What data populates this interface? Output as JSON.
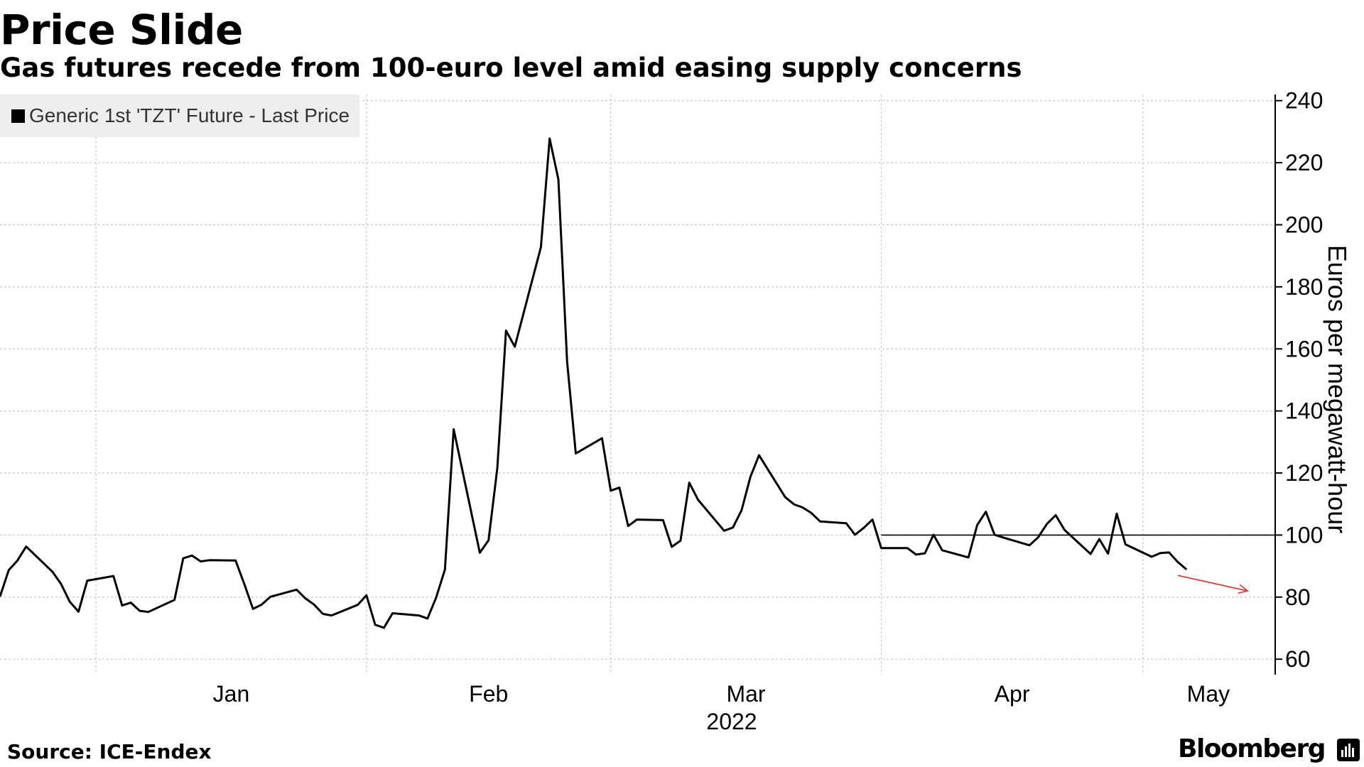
{
  "title": "Price Slide",
  "subtitle": "Gas futures recede from 100-euro level amid easing supply concerns",
  "source": "Source: ICE-Endex",
  "brand": "Bloomberg",
  "chart_data": {
    "type": "line",
    "title": "Price Slide",
    "subtitle": "Gas futures recede from 100-euro level amid easing supply concerns",
    "ylabel": "Euros per megawatt-hour",
    "xlabel": "2022",
    "y_axis_side": "right",
    "ylim": [
      55,
      242
    ],
    "yticks": [
      60,
      80,
      100,
      120,
      140,
      160,
      180,
      200,
      220,
      240
    ],
    "xlim": [
      "2021-12-21",
      "2022-05-16"
    ],
    "x_month_labels": [
      {
        "label": "Jan",
        "date": "2022-01-01"
      },
      {
        "label": "Feb",
        "date": "2022-02-01"
      },
      {
        "label": "Mar",
        "date": "2022-03-01"
      },
      {
        "label": "Apr",
        "date": "2022-04-01"
      },
      {
        "label": "May",
        "date": "2022-05-01"
      }
    ],
    "x_gridline_dates": [
      "2022-01-01",
      "2022-02-01",
      "2022-03-01",
      "2022-04-01",
      "2022-05-01"
    ],
    "year_label": "2022",
    "grid": true,
    "legend_position": "top-left",
    "reference_line": {
      "value": 100,
      "from_date": "2022-04-01"
    },
    "annotation_arrow": {
      "color": "#e8302c",
      "direction": "down-right",
      "from": {
        "date": "2022-05-05",
        "value": 87
      },
      "to": {
        "date": "2022-05-13",
        "value": 82
      }
    },
    "series": [
      {
        "name": "Generic 1st 'TZT' Future - Last Price",
        "color": "#000000",
        "points": [
          [
            "2021-12-21",
            80.2
          ],
          [
            "2021-12-22",
            88.7
          ],
          [
            "2021-12-23",
            91.8
          ],
          [
            "2021-12-24",
            96.3
          ],
          [
            "2021-12-27",
            88.2
          ],
          [
            "2021-12-28",
            84.2
          ],
          [
            "2021-12-29",
            78.5
          ],
          [
            "2021-12-30",
            75.3
          ],
          [
            "2021-12-31",
            85.3
          ],
          [
            "2022-01-03",
            86.8
          ],
          [
            "2022-01-04",
            77.3
          ],
          [
            "2022-01-05",
            78.2
          ],
          [
            "2022-01-06",
            75.6
          ],
          [
            "2022-01-07",
            75.2
          ],
          [
            "2022-01-10",
            79.1
          ],
          [
            "2022-01-11",
            92.5
          ],
          [
            "2022-01-12",
            93.4
          ],
          [
            "2022-01-13",
            91.5
          ],
          [
            "2022-01-14",
            91.9
          ],
          [
            "2022-01-17",
            91.8
          ],
          [
            "2022-01-18",
            84.2
          ],
          [
            "2022-01-19",
            76.2
          ],
          [
            "2022-01-20",
            77.6
          ],
          [
            "2022-01-21",
            80.1
          ],
          [
            "2022-01-24",
            82.4
          ],
          [
            "2022-01-25",
            79.6
          ],
          [
            "2022-01-26",
            77.6
          ],
          [
            "2022-01-27",
            74.6
          ],
          [
            "2022-01-28",
            74.1
          ],
          [
            "2022-01-31",
            77.5
          ],
          [
            "2022-02-01",
            80.6
          ],
          [
            "2022-02-02",
            71.1
          ],
          [
            "2022-02-03",
            70.1
          ],
          [
            "2022-02-04",
            74.8
          ],
          [
            "2022-02-07",
            74.1
          ],
          [
            "2022-02-08",
            73.1
          ],
          [
            "2022-02-09",
            79.9
          ],
          [
            "2022-02-10",
            88.9
          ],
          [
            "2022-02-11",
            134.1
          ],
          [
            "2022-02-14",
            94.3
          ],
          [
            "2022-02-15",
            98.3
          ],
          [
            "2022-02-16",
            121.5
          ],
          [
            "2022-02-17",
            165.9
          ],
          [
            "2022-02-18",
            160.7
          ],
          [
            "2022-02-21",
            192.8
          ],
          [
            "2022-02-22",
            227.8
          ],
          [
            "2022-02-23",
            214.6
          ],
          [
            "2022-02-24",
            155.8
          ],
          [
            "2022-02-25",
            126.3
          ],
          [
            "2022-02-28",
            131.2
          ],
          [
            "2022-03-01",
            114.3
          ],
          [
            "2022-03-02",
            115.3
          ],
          [
            "2022-03-03",
            102.9
          ],
          [
            "2022-03-04",
            105.0
          ],
          [
            "2022-03-07",
            104.8
          ],
          [
            "2022-03-08",
            96.2
          ],
          [
            "2022-03-09",
            98.2
          ],
          [
            "2022-03-10",
            116.9
          ],
          [
            "2022-03-11",
            111.4
          ],
          [
            "2022-03-14",
            101.4
          ],
          [
            "2022-03-15",
            102.4
          ],
          [
            "2022-03-16",
            108.0
          ],
          [
            "2022-03-17",
            118.7
          ],
          [
            "2022-03-18",
            125.7
          ],
          [
            "2022-03-21",
            112.2
          ],
          [
            "2022-03-22",
            109.9
          ],
          [
            "2022-03-23",
            108.9
          ],
          [
            "2022-03-24",
            107.1
          ],
          [
            "2022-03-25",
            104.4
          ],
          [
            "2022-03-28",
            103.8
          ],
          [
            "2022-03-29",
            100.1
          ],
          [
            "2022-03-30",
            102.3
          ],
          [
            "2022-03-31",
            105.0
          ],
          [
            "2022-04-01",
            95.8
          ],
          [
            "2022-04-04",
            95.8
          ],
          [
            "2022-04-05",
            93.7
          ],
          [
            "2022-04-06",
            94.1
          ],
          [
            "2022-04-07",
            100.1
          ],
          [
            "2022-04-08",
            95.1
          ],
          [
            "2022-04-11",
            92.8
          ],
          [
            "2022-04-12",
            103.2
          ],
          [
            "2022-04-13",
            107.5
          ],
          [
            "2022-04-14",
            100.1
          ],
          [
            "2022-04-15",
            99.2
          ],
          [
            "2022-04-18",
            96.7
          ],
          [
            "2022-04-19",
            99.3
          ],
          [
            "2022-04-20",
            103.6
          ],
          [
            "2022-04-21",
            106.4
          ],
          [
            "2022-04-22",
            101.7
          ],
          [
            "2022-04-25",
            93.9
          ],
          [
            "2022-04-26",
            98.7
          ],
          [
            "2022-04-27",
            94.0
          ],
          [
            "2022-04-28",
            106.9
          ],
          [
            "2022-04-29",
            97.0
          ],
          [
            "2022-05-02",
            93.0
          ],
          [
            "2022-05-03",
            94.2
          ],
          [
            "2022-05-04",
            94.4
          ],
          [
            "2022-05-05",
            91.3
          ],
          [
            "2022-05-06",
            88.9
          ]
        ]
      }
    ]
  }
}
